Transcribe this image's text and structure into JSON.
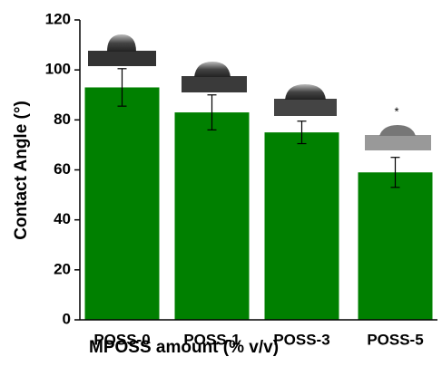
{
  "chart_data": {
    "type": "bar",
    "xlabel": "MPOSS amount (% v/v)",
    "ylabel": "Contact Angle (°)",
    "categories": [
      "POSS-0",
      "POSS-1",
      "POSS-3",
      "POSS-5"
    ],
    "values": [
      93,
      83,
      75,
      59
    ],
    "errors": [
      7.5,
      7,
      4.5,
      6
    ],
    "color": "#008000",
    "ylim": [
      0,
      120
    ],
    "yticks": [
      0,
      20,
      40,
      60,
      80,
      100,
      120
    ],
    "annotation": "*"
  }
}
